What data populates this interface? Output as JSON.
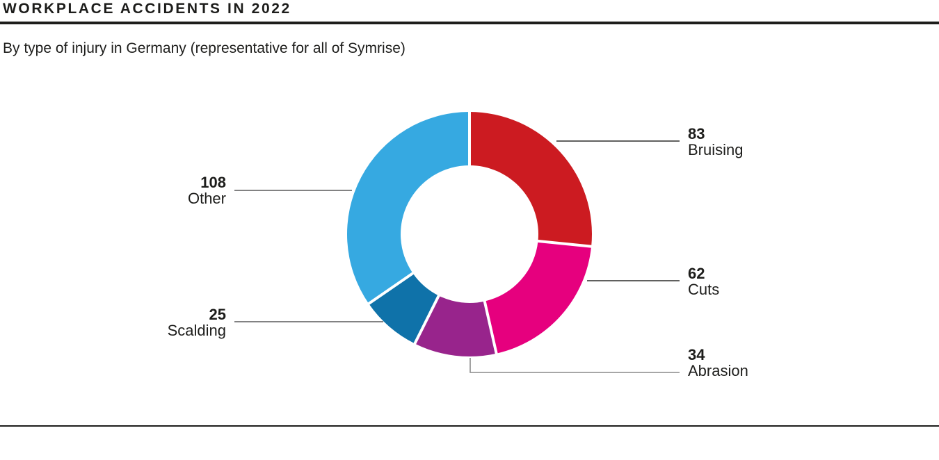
{
  "header": {
    "title": "WORKPLACE ACCIDENTS IN 2022",
    "subtitle": "By type of injury in Germany (representative for all of Symrise)"
  },
  "chart_data": {
    "type": "pie",
    "variant": "donut",
    "title": "WORKPLACE ACCIDENTS IN 2022",
    "subtitle": "By type of injury in Germany (representative for all of Symrise)",
    "slices": [
      {
        "label": "Bruising",
        "value": 83,
        "color": "#cc1b21"
      },
      {
        "label": "Cuts",
        "value": 62,
        "color": "#e6007e"
      },
      {
        "label": "Abrasion",
        "value": 34,
        "color": "#98248c"
      },
      {
        "label": "Scalding",
        "value": 25,
        "color": "#0f72a9"
      },
      {
        "label": "Other",
        "value": 108,
        "color": "#36a9e1"
      }
    ],
    "layout_hints": {
      "start_angle_deg": 0,
      "direction": "clockwise",
      "inner_radius_ratio": 0.56,
      "slice_gap_color": "#ffffff",
      "legend": "none",
      "label_style": "bold value above category name, connected to slice by leader line"
    }
  },
  "style": {
    "text_color": "#1d1d1b",
    "rule_color": "#1d1d1b",
    "background": "#ffffff"
  }
}
